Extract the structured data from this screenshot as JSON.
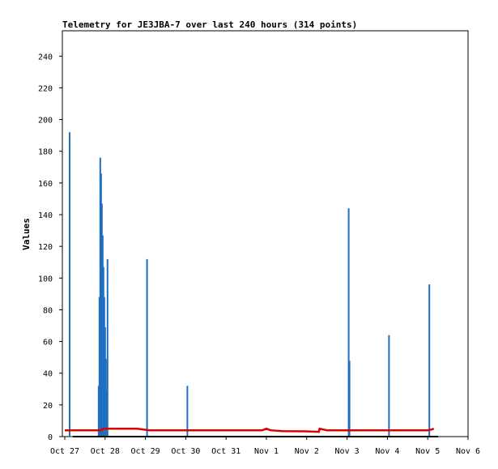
{
  "chart_data": {
    "type": "bar",
    "title": "Telemetry for JE3JBA-7 over last 240 hours (314 points)",
    "ylabel": "Values",
    "xlabel": "",
    "ylim": [
      0,
      256
    ],
    "yticks": [
      0,
      20,
      40,
      60,
      80,
      100,
      120,
      140,
      160,
      180,
      200,
      220,
      240
    ],
    "xlim": [
      0,
      10
    ],
    "xticks": [
      {
        "label": "Oct 27",
        "x": 0
      },
      {
        "label": "Oct 28",
        "x": 1
      },
      {
        "label": "Oct 29",
        "x": 2
      },
      {
        "label": "Oct 30",
        "x": 3
      },
      {
        "label": "Oct 31",
        "x": 4
      },
      {
        "label": "Nov 1",
        "x": 5
      },
      {
        "label": "Nov 2",
        "x": 6
      },
      {
        "label": "Nov 3",
        "x": 7
      },
      {
        "label": "Nov 4",
        "x": 8
      },
      {
        "label": "Nov 5",
        "x": 9
      },
      {
        "label": "Nov 6",
        "x": 10
      }
    ],
    "grid": false,
    "colors": {
      "spikes": "#1f6fbf",
      "line": "#dd0000",
      "baseline": "#000000"
    },
    "series": [
      {
        "style": "spikes",
        "points": [
          [
            0.12,
            192
          ],
          [
            0.84,
            32
          ],
          [
            0.86,
            88
          ],
          [
            0.88,
            176
          ],
          [
            0.9,
            166
          ],
          [
            0.92,
            147
          ],
          [
            0.94,
            127
          ],
          [
            0.96,
            107
          ],
          [
            0.98,
            88
          ],
          [
            1.0,
            69
          ],
          [
            1.02,
            49
          ],
          [
            1.04,
            29
          ],
          [
            1.06,
            112
          ],
          [
            2.04,
            112
          ],
          [
            3.04,
            32
          ],
          [
            7.04,
            144
          ],
          [
            7.06,
            48
          ],
          [
            8.04,
            64
          ],
          [
            9.04,
            96
          ]
        ]
      },
      {
        "style": "line",
        "points": [
          [
            0.0,
            4
          ],
          [
            0.9,
            4
          ],
          [
            0.95,
            5
          ],
          [
            1.2,
            5
          ],
          [
            1.5,
            5
          ],
          [
            1.8,
            5
          ],
          [
            2.1,
            4
          ],
          [
            2.5,
            4
          ],
          [
            3.0,
            4
          ],
          [
            4.0,
            4
          ],
          [
            4.9,
            4
          ],
          [
            5.0,
            5
          ],
          [
            5.1,
            4
          ],
          [
            5.4,
            3.5
          ],
          [
            6.0,
            3.3
          ],
          [
            6.3,
            3
          ],
          [
            6.32,
            5
          ],
          [
            6.5,
            4
          ],
          [
            7.0,
            4
          ],
          [
            8.0,
            4
          ],
          [
            9.0,
            4
          ],
          [
            9.1,
            4.5
          ],
          [
            9.15,
            5
          ]
        ]
      }
    ]
  }
}
